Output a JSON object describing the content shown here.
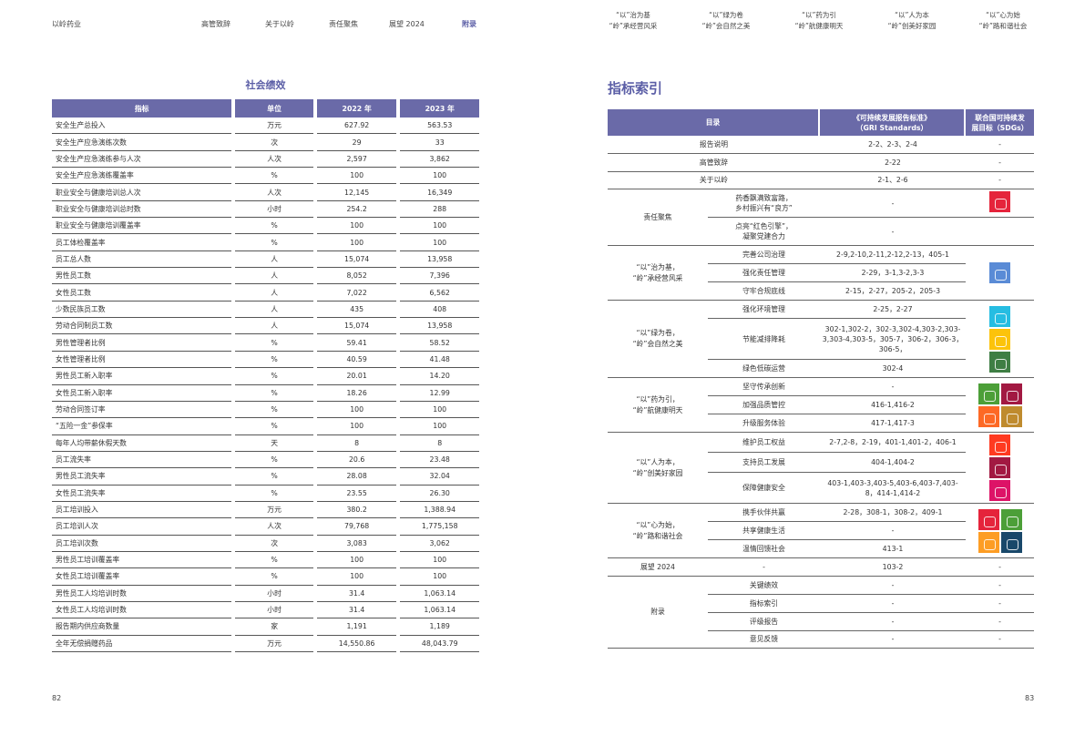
{
  "header": {
    "brand": "以岭药业",
    "nav": [
      {
        "label": "高管致辞",
        "left": 0
      },
      {
        "label": "关于以岭"
      },
      {
        "label": "责任聚焦"
      },
      {
        "label": "展望 2024"
      },
      {
        "label": "附录"
      }
    ],
    "right_nav": [
      {
        "line1": "“以”治为基",
        "line2": "“岭”承经营风采"
      },
      {
        "line1": "“以”绿为卷",
        "line2": "“岭”会自然之美"
      },
      {
        "line1": "“以”药为引",
        "line2": "“岭”航健康明天"
      },
      {
        "line1": "“以”人为本",
        "line2": "“岭”创美好家园"
      },
      {
        "line1": "“以”心为始",
        "line2": "“岭”路和谐社会"
      }
    ]
  },
  "left": {
    "title": "社会绩效",
    "columns": [
      "指标",
      "单位",
      "2022 年",
      "2023 年"
    ],
    "rows": [
      [
        "安全生产总投入",
        "万元",
        "627.92",
        "563.53"
      ],
      [
        "安全生产应急演练次数",
        "次",
        "29",
        "33"
      ],
      [
        "安全生产应急演练参与人次",
        "人次",
        "2,597",
        "3,862"
      ],
      [
        "安全生产应急演练覆盖率",
        "%",
        "100",
        "100"
      ],
      [
        "职业安全与健康培训总人次",
        "人次",
        "12,145",
        "16,349"
      ],
      [
        "职业安全与健康培训总时数",
        "小时",
        "254.2",
        "288"
      ],
      [
        "职业安全与健康培训覆盖率",
        "%",
        "100",
        "100"
      ],
      [
        "员工体检覆盖率",
        "%",
        "100",
        "100"
      ],
      [
        "员工总人数",
        "人",
        "15,074",
        "13,958"
      ],
      [
        "男性员工数",
        "人",
        "8,052",
        "7,396"
      ],
      [
        "女性员工数",
        "人",
        "7,022",
        "6,562"
      ],
      [
        "少数民族员工数",
        "人",
        "435",
        "408"
      ],
      [
        "劳动合同制员工数",
        "人",
        "15,074",
        "13,958"
      ],
      [
        "男性管理者比例",
        "%",
        "59.41",
        "58.52"
      ],
      [
        "女性管理者比例",
        "%",
        "40.59",
        "41.48"
      ],
      [
        "男性员工新入职率",
        "%",
        "20.01",
        "14.20"
      ],
      [
        "女性员工新入职率",
        "%",
        "18.26",
        "12.99"
      ],
      [
        "劳动合同签订率",
        "%",
        "100",
        "100"
      ],
      [
        "“五险一金”参保率",
        "%",
        "100",
        "100"
      ],
      [
        "每年人均带薪休假天数",
        "天",
        "8",
        "8"
      ],
      [
        "员工流失率",
        "%",
        "20.6",
        "23.48"
      ],
      [
        "男性员工流失率",
        "%",
        "28.08",
        "32.04"
      ],
      [
        "女性员工流失率",
        "%",
        "23.55",
        "26.30"
      ],
      [
        "员工培训投入",
        "万元",
        "380.2",
        "1,388.94"
      ],
      [
        "员工培训人次",
        "人次",
        "79,768",
        "1,775,158"
      ],
      [
        "员工培训次数",
        "次",
        "3,083",
        "3,062"
      ],
      [
        "男性员工培训覆盖率",
        "%",
        "100",
        "100"
      ],
      [
        "女性员工培训覆盖率",
        "%",
        "100",
        "100"
      ],
      [
        "男性员工人均培训时数",
        "小时",
        "31.4",
        "1,063.14"
      ],
      [
        "女性员工人均培训时数",
        "小时",
        "31.4",
        "1,063.14"
      ],
      [
        "报告期内供应商数量",
        "家",
        "1,191",
        "1,189"
      ],
      [
        "全年无偿捐赠药品",
        "万元",
        "14,550.86",
        "48,043.79"
      ]
    ]
  },
  "right": {
    "title": "指标索引",
    "columns": {
      "c1": "目录",
      "c2a": "《可持续发展报告标准》",
      "c2b": "（GRI Standards）",
      "c3a": "联合国可持续发",
      "c3b": "展目标（SDGs）"
    },
    "simple_rows": [
      {
        "label": "报告说明",
        "gri": "2-2、2-3、2-4",
        "sdg": "-"
      },
      {
        "label": "高管致辞",
        "gri": "2-22",
        "sdg": "-"
      },
      {
        "label": "关于以岭",
        "gri": "2-1、2-6",
        "sdg": "-"
      }
    ],
    "focus": {
      "label": "责任聚焦",
      "items": [
        {
          "a": "药香飘满致富路，",
          "b": "乡村振兴有“良方”",
          "gri": "-"
        },
        {
          "a": "点亮“红色引擎”，",
          "b": "凝聚党建合力",
          "gri": "-"
        }
      ]
    },
    "groups": [
      {
        "label1": "“以”治为基，",
        "label2": "“岭”承经营风采",
        "items": [
          {
            "sub": "完善公司治理",
            "gri": "2-9,2-10,2-11,2-12,2-13，405-1"
          },
          {
            "sub": "强化责任管理",
            "gri": "2-29，3-1,3-2,3-3"
          },
          {
            "sub": "守牢合规底线",
            "gri": "2-15，2-27，205-2，205-3"
          }
        ],
        "sdgs": [
          "#5a8bd6"
        ]
      },
      {
        "label1": "“以”绿为卷，",
        "label2": "“岭”会自然之美",
        "items": [
          {
            "sub": "强化环境管理",
            "gri": "2-25，2-27"
          },
          {
            "sub": "节能减排降耗",
            "gri": "302-1,302-2，302-3,302-4,303-2,303-3,303-4,303-5，305-7，306-2，306-3，306-5，"
          },
          {
            "sub": "绿色低碳运营",
            "gri": "302-4"
          }
        ],
        "sdgs": [
          "#26bde2",
          "#fcc30b",
          "#3f7e44"
        ]
      },
      {
        "label1": "“以”药为引，",
        "label2": "“岭”航健康明天",
        "items": [
          {
            "sub": "坚守传承创新",
            "gri": "-"
          },
          {
            "sub": "加强品质管控",
            "gri": "416-1,416-2"
          },
          {
            "sub": "升级服务体验",
            "gri": "417-1,417-3"
          }
        ],
        "sdgs": [
          "#4c9f38",
          "#a21942",
          "#fd6925",
          "#bf8b2e"
        ]
      },
      {
        "label1": "“以”人为本，",
        "label2": "“岭”创美好家园",
        "items": [
          {
            "sub": "维护员工权益",
            "gri": "2-7,2-8，2-19，401-1,401-2，406-1"
          },
          {
            "sub": "支持员工发展",
            "gri": "404-1,404-2"
          },
          {
            "sub": "保障健康安全",
            "gri": "403-1,403-3,403-5,403-6,403-7,403-8，414-1,414-2"
          }
        ],
        "sdgs": [
          "#ff3a21",
          "#a21942",
          "#dd1367"
        ]
      },
      {
        "label1": "“以”心为始，",
        "label2": "“岭”路和谐社会",
        "items": [
          {
            "sub": "携手伙伴共赢",
            "gri": "2-28，308-1，308-2，409-1"
          },
          {
            "sub": "共享健康生活",
            "gri": "-"
          },
          {
            "sub": "温情回馈社会",
            "gri": "413-1"
          }
        ],
        "sdgs": [
          "#e5243b",
          "#4c9f38",
          "#fd9d24",
          "#19486a"
        ]
      }
    ],
    "outlook": {
      "label": "展望 2024",
      "sub": "-",
      "gri": "103-2",
      "sdg": "-"
    },
    "appendix": {
      "label": "附录",
      "items": [
        {
          "sub": "关键绩效",
          "gri": "-",
          "sdg": "-"
        },
        {
          "sub": "指标索引",
          "gri": "-",
          "sdg": "-"
        },
        {
          "sub": "评级报告",
          "gri": "-",
          "sdg": "-"
        },
        {
          "sub": "意见反馈",
          "gri": "-",
          "sdg": "-"
        }
      ]
    },
    "focus_sdg": "#e5243b"
  },
  "pages": {
    "left": "82",
    "right": "83"
  }
}
